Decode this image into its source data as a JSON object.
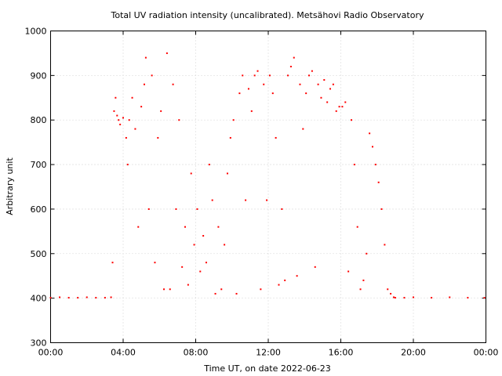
{
  "chart_data": {
    "type": "scatter",
    "title": "Total UV radiation intensity (uncalibrated). Metsähovi Radio Observatory",
    "xlabel": "Time UT, on date 2022-06-23",
    "ylabel": "Arbitrary unit",
    "xlim": [
      "00:00",
      "24:00"
    ],
    "ylim": [
      300,
      1000
    ],
    "x_ticks": [
      "00:00",
      "04:00",
      "08:00",
      "12:00",
      "16:00",
      "20:00",
      "00:00"
    ],
    "y_ticks": [
      300,
      400,
      500,
      600,
      700,
      800,
      900,
      1000
    ],
    "grid": true,
    "series_color": "#ff0000",
    "series": [
      {
        "x": [
          "00:00",
          "00:30",
          "01:00",
          "01:30",
          "02:00",
          "02:30",
          "03:00",
          "03:20",
          "03:25",
          "03:30",
          "03:35",
          "03:40",
          "03:45",
          "03:50",
          "04:00",
          "04:10",
          "04:15",
          "04:20",
          "04:30",
          "04:40",
          "04:50",
          "05:00",
          "05:10",
          "05:15",
          "05:25",
          "05:35",
          "05:45",
          "05:55",
          "06:05",
          "06:15",
          "06:25",
          "06:35",
          "06:45",
          "06:55",
          "07:05",
          "07:15",
          "07:25",
          "07:35",
          "07:45",
          "07:55",
          "08:05",
          "08:15",
          "08:25",
          "08:35",
          "08:45",
          "08:55",
          "09:05",
          "09:15",
          "09:25",
          "09:35",
          "09:45",
          "09:55",
          "10:05",
          "10:15",
          "10:25",
          "10:35",
          "10:45",
          "10:55",
          "11:05",
          "11:15",
          "11:25",
          "11:35",
          "11:45",
          "11:55",
          "12:05",
          "12:15",
          "12:25",
          "12:35",
          "12:45",
          "12:55",
          "13:05",
          "13:15",
          "13:25",
          "13:35",
          "13:45",
          "13:55",
          "14:05",
          "14:15",
          "14:25",
          "14:35",
          "14:45",
          "14:55",
          "15:05",
          "15:15",
          "15:25",
          "15:35",
          "15:45",
          "15:55",
          "16:05",
          "16:15",
          "16:25",
          "16:35",
          "16:45",
          "16:55",
          "17:05",
          "17:15",
          "17:25",
          "17:35",
          "17:45",
          "17:55",
          "18:05",
          "18:15",
          "18:25",
          "18:35",
          "18:45",
          "18:55",
          "19:00",
          "19:30",
          "20:00",
          "21:00",
          "22:00",
          "23:00",
          "23:55"
        ],
        "y": [
          401,
          402,
          401,
          401,
          402,
          401,
          401,
          402,
          480,
          820,
          850,
          810,
          800,
          790,
          805,
          760,
          700,
          800,
          850,
          780,
          560,
          830,
          880,
          940,
          600,
          900,
          480,
          760,
          820,
          420,
          950,
          420,
          880,
          600,
          800,
          470,
          560,
          430,
          680,
          520,
          600,
          460,
          540,
          480,
          700,
          620,
          410,
          560,
          420,
          520,
          680,
          760,
          800,
          410,
          860,
          900,
          620,
          870,
          820,
          900,
          910,
          420,
          880,
          620,
          900,
          860,
          760,
          430,
          600,
          440,
          900,
          920,
          940,
          450,
          880,
          780,
          860,
          900,
          910,
          470,
          880,
          850,
          890,
          840,
          870,
          880,
          820,
          830,
          830,
          840,
          460,
          800,
          700,
          560,
          420,
          440,
          500,
          770,
          740,
          700,
          660,
          600,
          520,
          420,
          410,
          402,
          401,
          401,
          402,
          401,
          402,
          401,
          401
        ]
      }
    ]
  }
}
